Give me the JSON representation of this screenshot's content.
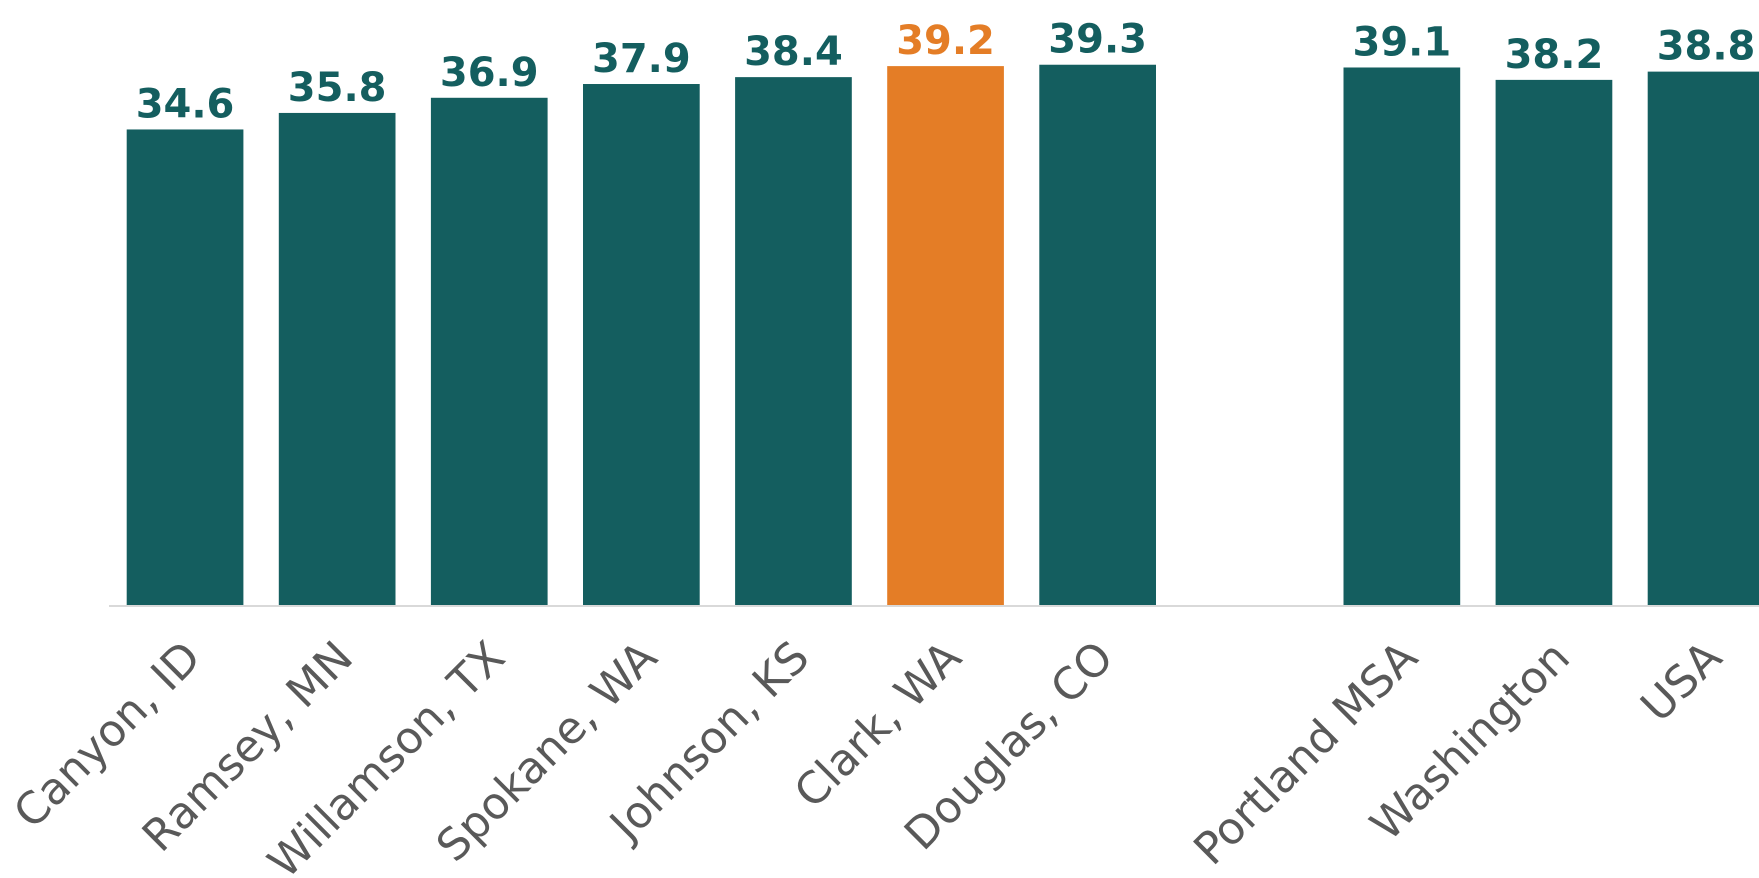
{
  "chart_data": {
    "type": "bar",
    "categories": [
      "Canyon, ID",
      "Ramsey, MN",
      "Willamson, TX",
      "Spokane, WA",
      "Johnson, KS",
      "Clark, WA",
      "Douglas, CO",
      null,
      "Portland MSA",
      "Washington",
      "USA"
    ],
    "values": [
      34.6,
      35.8,
      36.9,
      37.9,
      38.4,
      39.2,
      39.3,
      null,
      39.1,
      38.2,
      38.8
    ],
    "colors": [
      "#145e5f",
      "#145e5f",
      "#145e5f",
      "#145e5f",
      "#145e5f",
      "#e47d26",
      "#145e5f",
      null,
      "#145e5f",
      "#145e5f",
      "#145e5f"
    ],
    "ylim": [
      0,
      44
    ]
  }
}
